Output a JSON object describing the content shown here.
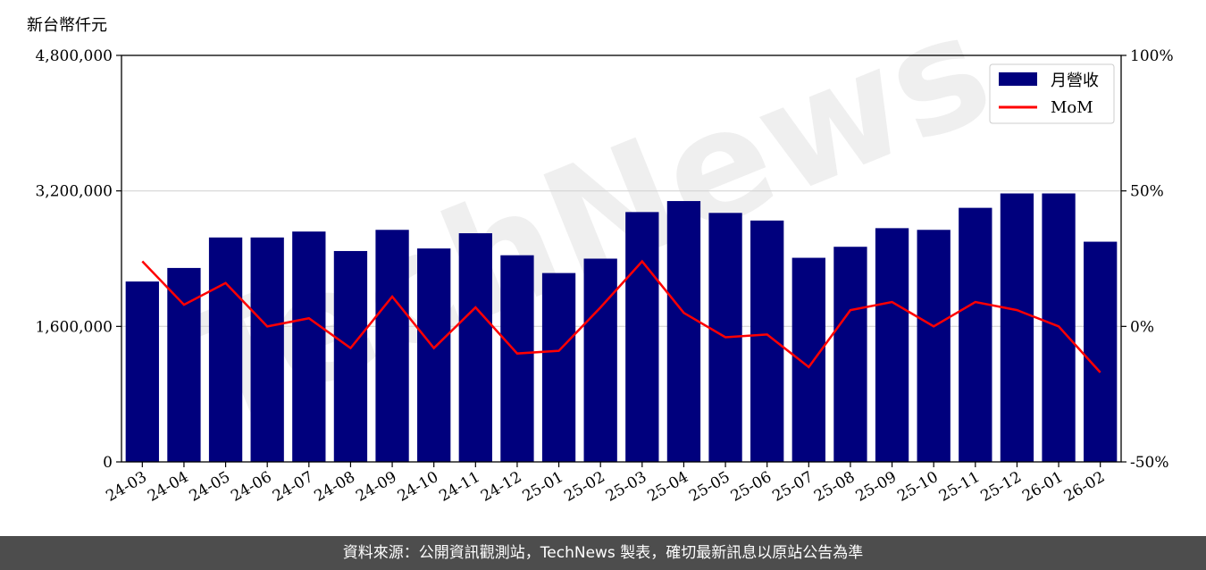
{
  "unit_label": "新台幣仟元",
  "footer": "資料來源：公開資訊觀測站，TechNews 製表，確切最新訊息以原站公告為準",
  "watermark": "TechNews",
  "colors": {
    "bar": "#00007d",
    "line": "#ff0000",
    "grid": "#d4d4d4",
    "footer_bg": "#4d4d4d"
  },
  "chart_data": {
    "type": "bar",
    "categories": [
      "24-03",
      "24-04",
      "24-05",
      "24-06",
      "24-07",
      "24-08",
      "24-09",
      "24-10",
      "24-11",
      "24-12",
      "25-01",
      "25-02",
      "25-03",
      "25-04",
      "25-05",
      "25-06",
      "25-07",
      "25-08",
      "25-09",
      "25-10",
      "25-11",
      "25-12",
      "26-01",
      "26-02"
    ],
    "series": [
      {
        "name": "月營收",
        "axis": "left",
        "kind": "bar",
        "values": [
          2130000,
          2290000,
          2650000,
          2650000,
          2720000,
          2490000,
          2740000,
          2520000,
          2700000,
          2440000,
          2230000,
          2400000,
          2950000,
          3080000,
          2940000,
          2850000,
          2410000,
          2540000,
          2760000,
          2740000,
          3000000,
          3170000,
          3170000,
          2600000
        ]
      },
      {
        "name": "MoM",
        "axis": "right",
        "kind": "line",
        "values": [
          24,
          8,
          16,
          0,
          3,
          -8,
          11,
          -8,
          7,
          -10,
          -9,
          7,
          24,
          5,
          -4,
          -3,
          -15,
          6,
          9,
          0,
          9,
          6,
          0,
          -17
        ]
      }
    ],
    "y_left": {
      "min": 0,
      "max": 4800000,
      "ticks": [
        "0",
        "1,600,000",
        "3,200,000",
        "4,800,000"
      ],
      "tick_values": [
        0,
        1600000,
        3200000,
        4800000
      ]
    },
    "y_right": {
      "min": -50,
      "max": 100,
      "ticks": [
        "-50%",
        "0%",
        "50%",
        "100%"
      ],
      "tick_values": [
        -50,
        0,
        50,
        100
      ]
    },
    "grid": "horizontal",
    "legend_position": "top-right"
  }
}
